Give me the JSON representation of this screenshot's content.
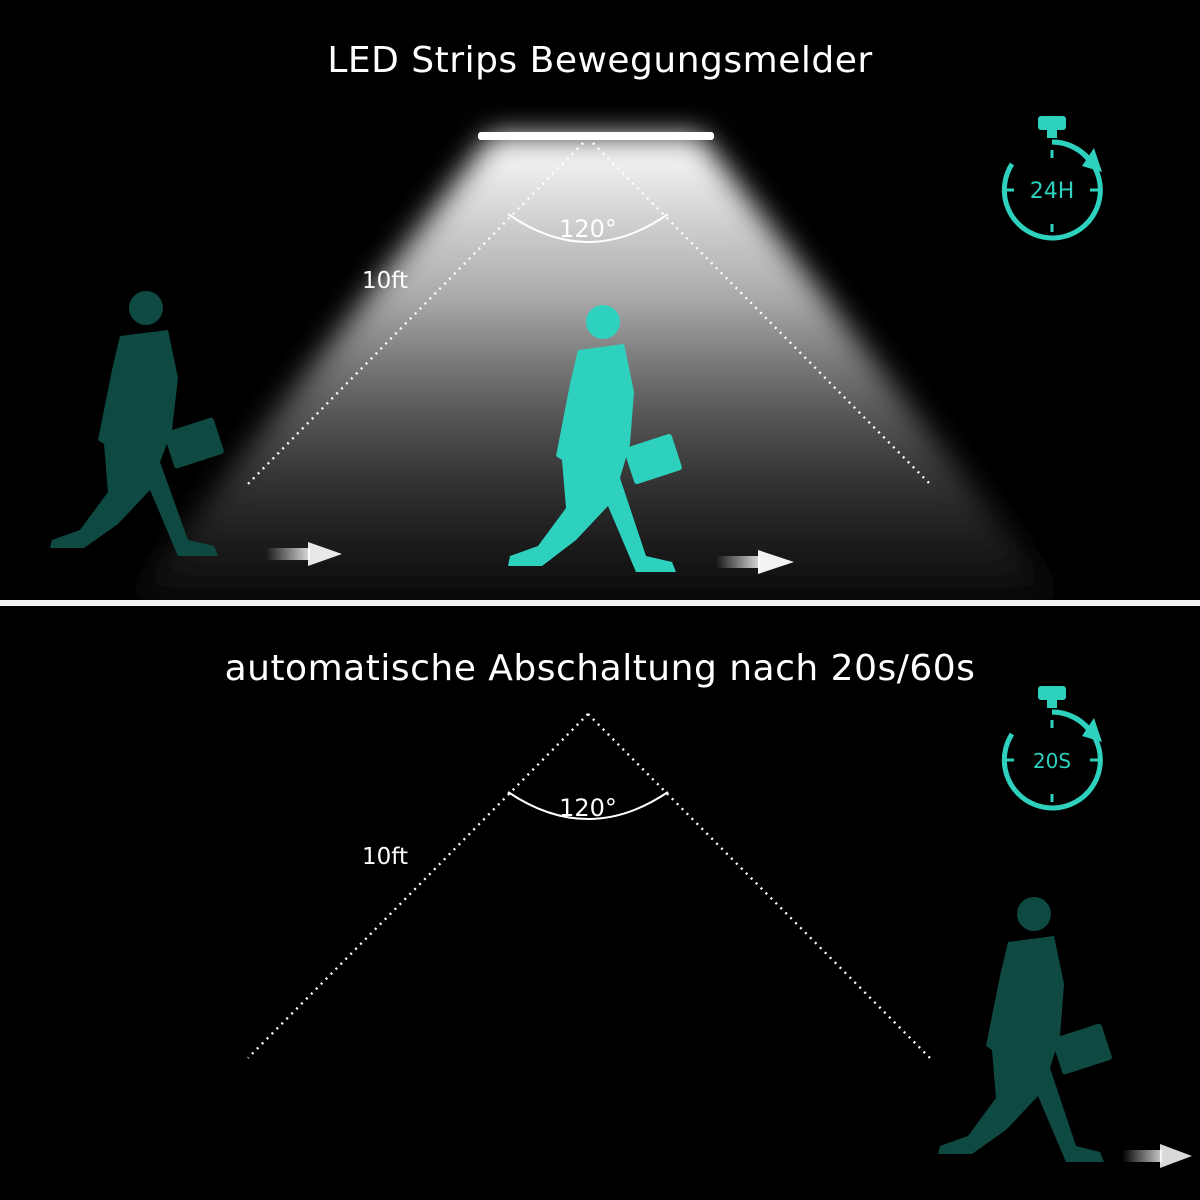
{
  "top": {
    "heading": "LED Strips Bewegungsmelder",
    "angle_label": "120°",
    "distance_label": "10ft",
    "timer_label": "24H",
    "state": "light-on"
  },
  "bottom": {
    "heading": "automatische Abschaltung nach 20s/60s",
    "angle_label": "120°",
    "distance_label": "10ft",
    "timer_label": "20S",
    "state": "light-off"
  },
  "colors": {
    "background": "#000000",
    "accent_teal": "#2ed1be",
    "dark_teal": "#0f4a42",
    "divider": "#f2f2f2",
    "text": "#ffffff"
  },
  "icons": [
    "stopwatch-icon",
    "walking-person-icon",
    "arrow-right-icon"
  ]
}
